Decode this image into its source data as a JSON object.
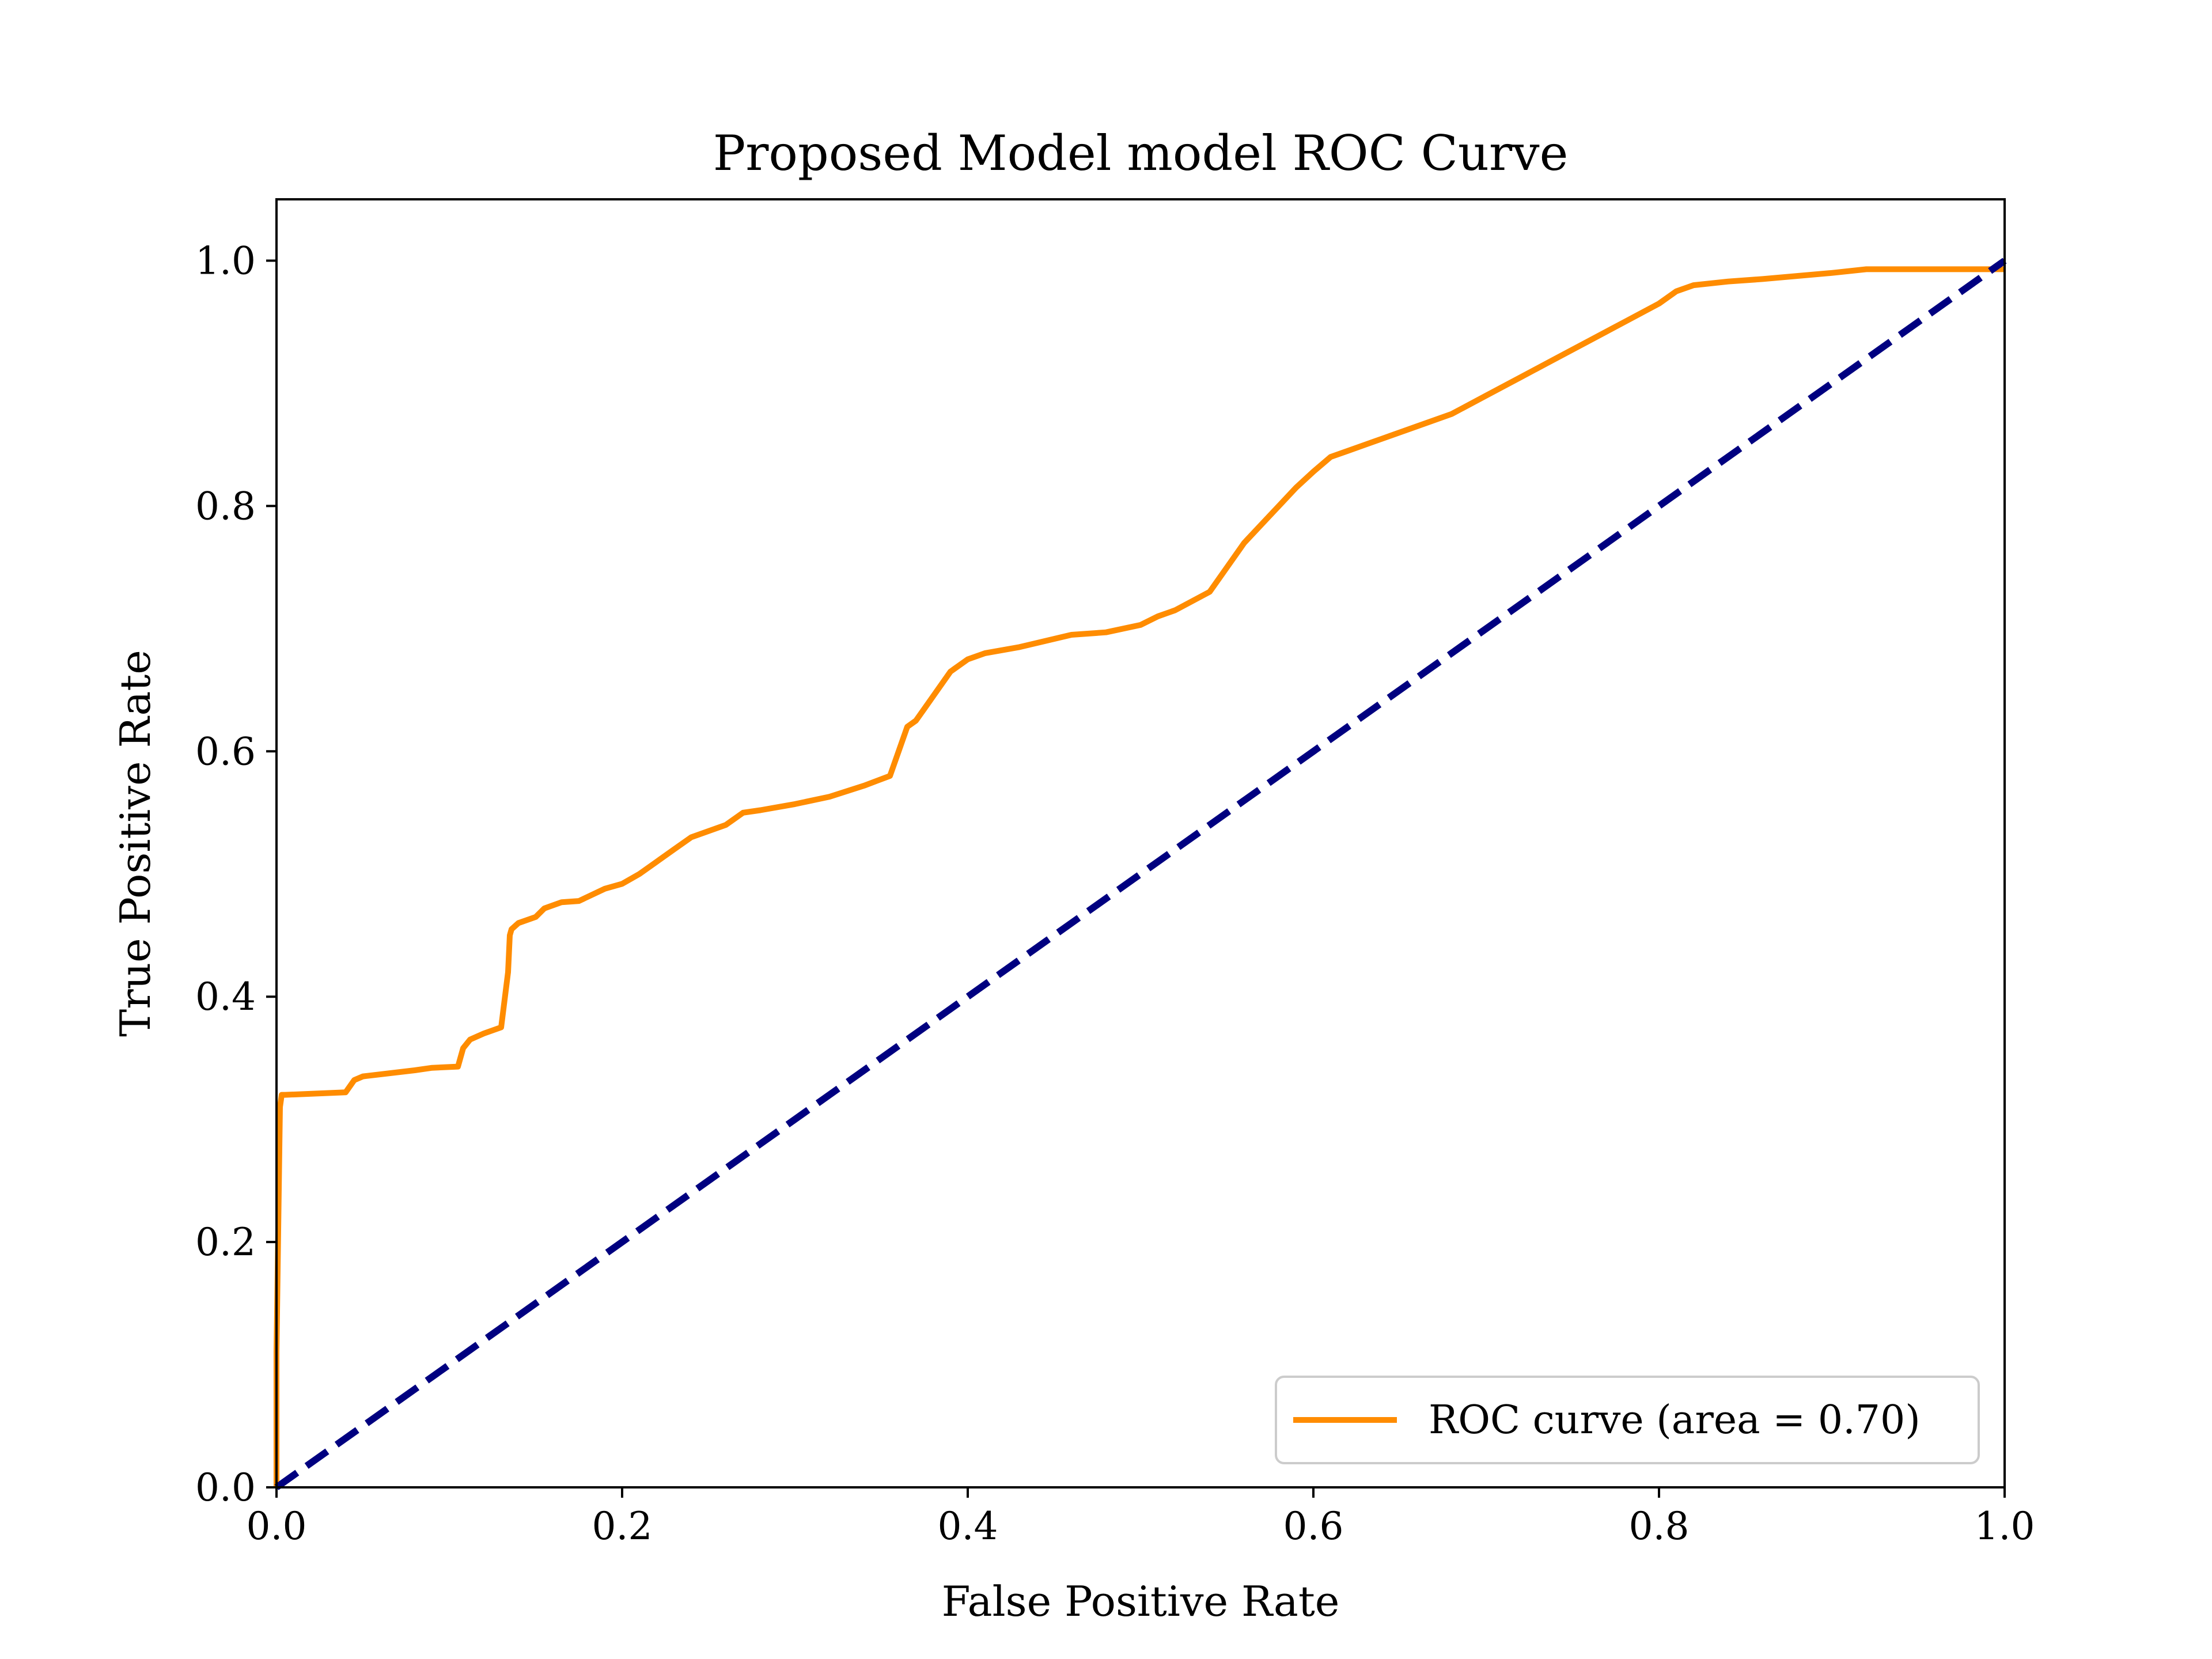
{
  "chart_data": {
    "type": "line",
    "title": "Proposed Model model ROC Curve",
    "xlabel": "False Positive Rate",
    "ylabel": "True Positive Rate",
    "xlim": [
      0.0,
      1.0
    ],
    "ylim": [
      0.0,
      1.05
    ],
    "xticks": [
      "0.0",
      "0.2",
      "0.4",
      "0.6",
      "0.8",
      "1.0"
    ],
    "yticks": [
      "0.0",
      "0.2",
      "0.4",
      "0.6",
      "0.8",
      "1.0"
    ],
    "grid": false,
    "legend_position": "lower-right",
    "series": [
      {
        "name": "ROC curve (area = 0.70)",
        "color": "#ff8c00",
        "style": "solid",
        "x": [
          0.0,
          0.0,
          0.002,
          0.003,
          0.005,
          0.04,
          0.045,
          0.05,
          0.08,
          0.09,
          0.105,
          0.108,
          0.112,
          0.12,
          0.13,
          0.134,
          0.135,
          0.136,
          0.14,
          0.15,
          0.155,
          0.165,
          0.175,
          0.19,
          0.2,
          0.21,
          0.22,
          0.23,
          0.24,
          0.26,
          0.27,
          0.28,
          0.3,
          0.32,
          0.34,
          0.355,
          0.36,
          0.365,
          0.37,
          0.375,
          0.38,
          0.39,
          0.4,
          0.41,
          0.43,
          0.46,
          0.48,
          0.5,
          0.51,
          0.52,
          0.54,
          0.55,
          0.56,
          0.57,
          0.58,
          0.59,
          0.6,
          0.61,
          0.62,
          0.63,
          0.64,
          0.66,
          0.68,
          0.7,
          0.72,
          0.74,
          0.76,
          0.78,
          0.8,
          0.81,
          0.82,
          0.84,
          0.86,
          0.9,
          0.92,
          1.0
        ],
        "y": [
          0.0,
          0.11,
          0.31,
          0.32,
          0.32,
          0.322,
          0.332,
          0.335,
          0.34,
          0.342,
          0.343,
          0.358,
          0.365,
          0.37,
          0.375,
          0.42,
          0.45,
          0.455,
          0.46,
          0.465,
          0.472,
          0.477,
          0.478,
          0.488,
          0.492,
          0.5,
          0.51,
          0.52,
          0.53,
          0.54,
          0.55,
          0.552,
          0.557,
          0.563,
          0.572,
          0.58,
          0.6,
          0.62,
          0.625,
          0.635,
          0.645,
          0.665,
          0.675,
          0.68,
          0.685,
          0.695,
          0.697,
          0.703,
          0.71,
          0.715,
          0.73,
          0.75,
          0.77,
          0.785,
          0.8,
          0.815,
          0.828,
          0.84,
          0.845,
          0.85,
          0.855,
          0.865,
          0.875,
          0.89,
          0.905,
          0.92,
          0.935,
          0.95,
          0.965,
          0.975,
          0.98,
          0.983,
          0.985,
          0.99,
          0.993,
          0.993
        ]
      },
      {
        "name": "",
        "color": "#000080",
        "style": "dashed",
        "x": [
          0.0,
          1.0
        ],
        "y": [
          0.0,
          1.0
        ]
      }
    ]
  }
}
